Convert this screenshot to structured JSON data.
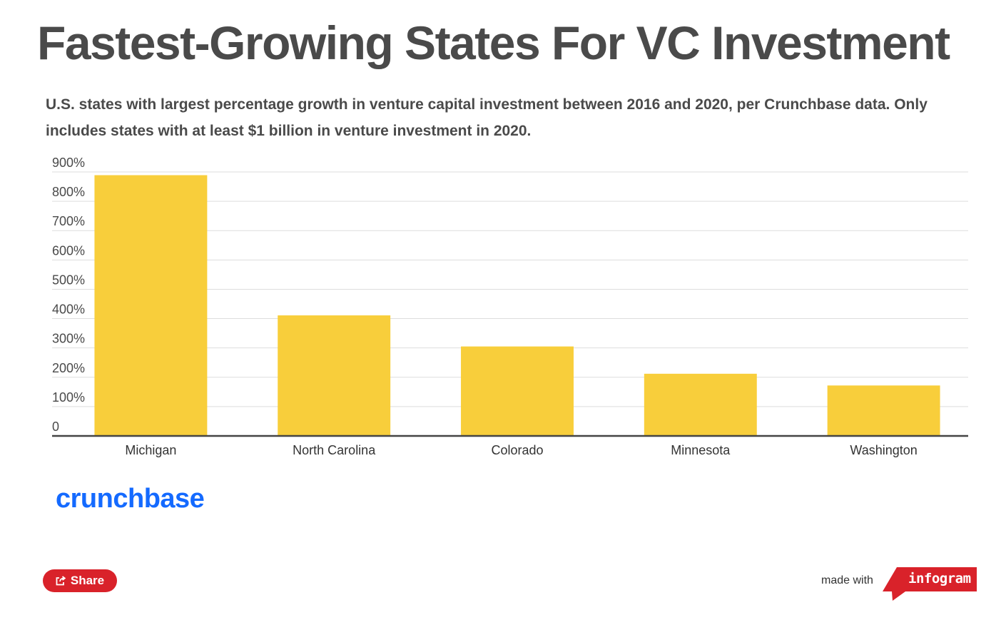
{
  "header": {
    "title": "Fastest-Growing States For VC Investment",
    "subtitle": "U.S. states with largest percentage growth in venture capital investment between 2016 and 2020, per Crunchbase data. Only includes states with at least $1 billion in venture investment in 2020."
  },
  "chart_data": {
    "type": "bar",
    "title": "Fastest-Growing States For VC Investment",
    "subtitle": "U.S. states with largest percentage growth in venture capital investment between 2016 and 2020, per Crunchbase data. Only includes states with at least $1 billion in venture investment in 2020.",
    "categories": [
      "Michigan",
      "North Carolina",
      "Colorado",
      "Minnesota",
      "Washington"
    ],
    "values": [
      889,
      411,
      305,
      212,
      172
    ],
    "ylim": [
      0,
      900
    ],
    "yticks": [
      0,
      100,
      200,
      300,
      400,
      500,
      600,
      700,
      800,
      900
    ],
    "ytick_labels": [
      "0",
      "100%",
      "200%",
      "300%",
      "400%",
      "500%",
      "600%",
      "700%",
      "800%",
      "900%"
    ],
    "xlabel": "",
    "ylabel": "",
    "grid": true,
    "bar_color": "#f8ce3b"
  },
  "footer": {
    "logo_text": "crunchbase",
    "share_label": "Share",
    "made_with_label": "made with",
    "infogram_label": "infogram"
  },
  "colors": {
    "bar": "#f8ce3b",
    "title": "#4a4a4a",
    "logo": "#146aff",
    "share_button": "#d9222a",
    "infogram_badge": "#d9222a"
  }
}
